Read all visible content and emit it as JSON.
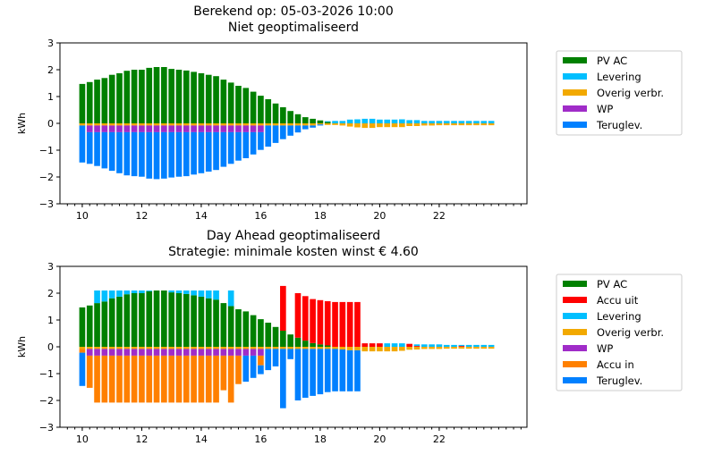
{
  "chart_data": [
    {
      "type": "bar",
      "stacked": true,
      "title": [
        "Berekend op: 05-03-2026 10:00",
        "Niet geoptimaliseerd"
      ],
      "xlabel": "",
      "ylabel": "kWh",
      "xlim": [
        9.25,
        24.95
      ],
      "ylim": [
        -3,
        3
      ],
      "xticks": [
        10,
        12,
        14,
        16,
        18,
        20,
        22
      ],
      "yticks": [
        -3,
        -2,
        -1,
        0,
        1,
        2,
        3
      ],
      "grid": false,
      "legend": "outside-right",
      "x": [
        10,
        10.25,
        10.5,
        10.75,
        11,
        11.25,
        11.5,
        11.75,
        12,
        12.25,
        12.5,
        12.75,
        13,
        13.25,
        13.5,
        13.75,
        14,
        14.25,
        14.5,
        14.75,
        15,
        15.25,
        15.5,
        15.75,
        16,
        16.25,
        16.5,
        16.75,
        17,
        17.25,
        17.5,
        17.75,
        18,
        18.25,
        18.5,
        18.75,
        19,
        19.25,
        19.5,
        19.75,
        20,
        20.25,
        20.5,
        20.75,
        21,
        21.25,
        21.5,
        21.75,
        22,
        22.25,
        22.5,
        22.75,
        23,
        23.25,
        23.5,
        23.75
      ],
      "series": [
        {
          "name": "PV AC",
          "color": "#008000",
          "values": [
            1.47,
            1.54,
            1.63,
            1.69,
            1.81,
            1.87,
            1.96,
            2.0,
            2.0,
            2.07,
            2.1,
            2.1,
            2.03,
            2.0,
            1.97,
            1.92,
            1.87,
            1.81,
            1.76,
            1.63,
            1.52,
            1.4,
            1.32,
            1.18,
            1.03,
            0.9,
            0.74,
            0.6,
            0.46,
            0.34,
            0.23,
            0.17,
            0.11,
            0.05,
            0,
            0,
            0,
            0,
            0,
            0,
            0,
            0,
            0,
            0,
            0,
            0,
            0,
            0,
            0,
            0,
            0,
            0,
            0,
            0,
            0,
            0
          ]
        },
        {
          "name": "Levering",
          "color": "#00bfff",
          "values": [
            0,
            0,
            0,
            0,
            0,
            0,
            0,
            0,
            0,
            0,
            0,
            0,
            0,
            0,
            0,
            0,
            0,
            0,
            0,
            0,
            0,
            0,
            0,
            0,
            0,
            0,
            0,
            0,
            0,
            0,
            0,
            0,
            0,
            0.03,
            0.09,
            0.09,
            0.14,
            0.15,
            0.17,
            0.17,
            0.14,
            0.14,
            0.14,
            0.15,
            0.12,
            0.12,
            0.09,
            0.09,
            0.09,
            0.09,
            0.09,
            0.09,
            0.09,
            0.09,
            0.09,
            0.09
          ]
        },
        {
          "name": "Overig verbr.",
          "color": "#f2a900",
          "values": [
            -0.08,
            -0.08,
            -0.08,
            -0.08,
            -0.08,
            -0.08,
            -0.08,
            -0.08,
            -0.08,
            -0.08,
            -0.08,
            -0.08,
            -0.08,
            -0.08,
            -0.08,
            -0.08,
            -0.08,
            -0.08,
            -0.08,
            -0.08,
            -0.08,
            -0.08,
            -0.08,
            -0.08,
            -0.08,
            -0.08,
            -0.08,
            -0.08,
            -0.08,
            -0.08,
            -0.08,
            -0.08,
            -0.04,
            -0.06,
            -0.06,
            -0.08,
            -0.12,
            -0.15,
            -0.17,
            -0.17,
            -0.14,
            -0.14,
            -0.14,
            -0.14,
            -0.1,
            -0.1,
            -0.08,
            -0.08,
            -0.07,
            -0.07,
            -0.07,
            -0.07,
            -0.07,
            -0.07,
            -0.07,
            -0.07
          ]
        },
        {
          "name": "WP",
          "color": "#a02cc8",
          "values": [
            0,
            -0.25,
            -0.25,
            -0.25,
            -0.25,
            -0.25,
            -0.25,
            -0.25,
            -0.25,
            -0.25,
            -0.25,
            -0.25,
            -0.25,
            -0.25,
            -0.25,
            -0.25,
            -0.25,
            -0.25,
            -0.25,
            -0.25,
            -0.25,
            -0.25,
            -0.25,
            -0.25,
            -0.25,
            0,
            0,
            0,
            0,
            0,
            0,
            0,
            0,
            0,
            0,
            0,
            0,
            0,
            0,
            0,
            0,
            0,
            0,
            0,
            0,
            0,
            0,
            0,
            0,
            0,
            0,
            0,
            0,
            0,
            0,
            0
          ]
        },
        {
          "name": "Teruglev.",
          "color": "#0080ff",
          "values": [
            -1.38,
            -1.18,
            -1.26,
            -1.35,
            -1.44,
            -1.53,
            -1.61,
            -1.64,
            -1.66,
            -1.73,
            -1.75,
            -1.73,
            -1.69,
            -1.66,
            -1.64,
            -1.58,
            -1.53,
            -1.47,
            -1.41,
            -1.29,
            -1.18,
            -1.06,
            -0.97,
            -0.83,
            -0.66,
            -0.79,
            -0.65,
            -0.51,
            -0.38,
            -0.26,
            -0.14,
            -0.08,
            -0.04,
            0,
            0,
            0,
            0,
            0,
            0,
            0,
            0,
            0,
            0,
            0,
            0,
            0,
            0,
            0,
            0,
            0,
            0,
            0,
            0,
            0,
            0,
            0
          ]
        }
      ]
    },
    {
      "type": "bar",
      "stacked": true,
      "title": [
        "Day Ahead geoptimaliseerd",
        "Strategie: minimale kosten winst € 4.60"
      ],
      "xlabel": "",
      "ylabel": "kWh",
      "xlim": [
        9.25,
        24.95
      ],
      "ylim": [
        -3,
        3
      ],
      "xticks": [
        10,
        12,
        14,
        16,
        18,
        20,
        22
      ],
      "yticks": [
        -3,
        -2,
        -1,
        0,
        1,
        2,
        3
      ],
      "grid": false,
      "legend": "outside-right",
      "x": [
        10,
        10.25,
        10.5,
        10.75,
        11,
        11.25,
        11.5,
        11.75,
        12,
        12.25,
        12.5,
        12.75,
        13,
        13.25,
        13.5,
        13.75,
        14,
        14.25,
        14.5,
        14.75,
        15,
        15.25,
        15.5,
        15.75,
        16,
        16.25,
        16.5,
        16.75,
        17,
        17.25,
        17.5,
        17.75,
        18,
        18.25,
        18.5,
        18.75,
        19,
        19.25,
        19.5,
        19.75,
        20,
        20.25,
        20.5,
        20.75,
        21,
        21.25,
        21.5,
        21.75,
        22,
        22.25,
        22.5,
        22.75,
        23,
        23.25,
        23.5,
        23.75
      ],
      "series": [
        {
          "name": "PV AC",
          "color": "#008000",
          "values": [
            1.47,
            1.54,
            1.63,
            1.69,
            1.81,
            1.87,
            1.96,
            2.0,
            2.0,
            2.07,
            2.1,
            2.1,
            2.03,
            2.0,
            1.97,
            1.92,
            1.87,
            1.81,
            1.76,
            1.63,
            1.52,
            1.4,
            1.32,
            1.18,
            1.03,
            0.9,
            0.74,
            0.6,
            0.46,
            0.34,
            0.23,
            0.14,
            0.09,
            0.05,
            0,
            0,
            0,
            0,
            0,
            0,
            0,
            0,
            0,
            0,
            0,
            0,
            0,
            0,
            0,
            0,
            0,
            0,
            0,
            0,
            0,
            0
          ]
        },
        {
          "name": "Accu uit",
          "color": "#ff0000",
          "values": [
            0,
            0,
            0,
            0,
            0,
            0,
            0,
            0,
            0,
            0,
            0,
            0,
            0,
            0,
            0,
            0,
            0,
            0,
            0,
            0,
            0,
            0,
            0,
            0,
            0,
            0,
            0,
            1.67,
            0,
            1.66,
            1.66,
            1.64,
            1.65,
            1.65,
            1.67,
            1.67,
            1.67,
            1.67,
            0.13,
            0.13,
            0.13,
            0,
            0,
            0,
            0.11,
            0.03,
            0,
            0,
            0,
            0,
            0,
            0.03,
            0,
            0,
            0,
            0
          ]
        },
        {
          "name": "Levering",
          "color": "#00bfff",
          "values": [
            0,
            0,
            0.47,
            0.41,
            0.29,
            0.23,
            0.14,
            0.1,
            0.1,
            0.03,
            0,
            0,
            0.07,
            0.1,
            0.13,
            0.18,
            0.23,
            0.29,
            0.34,
            0,
            0.58,
            0,
            0,
            0,
            0,
            0,
            0,
            0,
            0,
            0,
            0,
            0,
            0,
            0,
            0,
            0,
            0,
            0,
            0,
            0,
            0,
            0.13,
            0.13,
            0.13,
            0,
            0.06,
            0.09,
            0.09,
            0.09,
            0.07,
            0.07,
            0.04,
            0.07,
            0.07,
            0.07,
            0.07
          ]
        },
        {
          "name": "Overig verbr.",
          "color": "#f2a900",
          "values": [
            -0.08,
            -0.08,
            -0.08,
            -0.08,
            -0.08,
            -0.08,
            -0.08,
            -0.08,
            -0.08,
            -0.08,
            -0.08,
            -0.08,
            -0.08,
            -0.08,
            -0.08,
            -0.08,
            -0.08,
            -0.08,
            -0.08,
            -0.08,
            -0.08,
            -0.08,
            -0.08,
            -0.08,
            -0.08,
            -0.08,
            -0.08,
            -0.08,
            -0.08,
            -0.08,
            -0.08,
            -0.08,
            -0.08,
            -0.08,
            -0.08,
            -0.1,
            -0.13,
            -0.13,
            -0.17,
            -0.17,
            -0.17,
            -0.17,
            -0.17,
            -0.15,
            -0.11,
            -0.1,
            -0.08,
            -0.08,
            -0.08,
            -0.07,
            -0.07,
            -0.07,
            -0.07,
            -0.07,
            -0.07,
            -0.07
          ]
        },
        {
          "name": "WP",
          "color": "#a02cc8",
          "values": [
            0,
            -0.25,
            -0.25,
            -0.25,
            -0.25,
            -0.25,
            -0.25,
            -0.25,
            -0.25,
            -0.25,
            -0.25,
            -0.25,
            -0.25,
            -0.25,
            -0.25,
            -0.25,
            -0.25,
            -0.25,
            -0.25,
            -0.25,
            -0.25,
            -0.25,
            -0.25,
            -0.25,
            -0.25,
            0,
            0,
            0,
            0,
            0,
            0,
            0,
            0,
            0,
            0,
            0,
            0,
            0,
            0,
            0,
            0,
            0,
            0,
            0,
            0,
            0,
            0,
            0,
            0,
            0,
            0,
            0,
            0,
            0,
            0,
            0
          ]
        },
        {
          "name": "Accu in",
          "color": "#ff8000",
          "values": [
            -0.14,
            -1.2,
            -1.75,
            -1.75,
            -1.75,
            -1.75,
            -1.75,
            -1.75,
            -1.75,
            -1.75,
            -1.75,
            -1.75,
            -1.75,
            -1.75,
            -1.75,
            -1.75,
            -1.75,
            -1.75,
            -1.75,
            -1.29,
            -1.75,
            -1.06,
            0,
            0,
            -0.36,
            0,
            0,
            0,
            0,
            0,
            0,
            0,
            0,
            0,
            0,
            0,
            0,
            0,
            0,
            0,
            0,
            0,
            0,
            0,
            0,
            0,
            0,
            0,
            0,
            0,
            0,
            0,
            0,
            0,
            0,
            0
          ]
        },
        {
          "name": "Teruglev.",
          "color": "#0080ff",
          "values": [
            -1.24,
            0,
            0,
            0,
            0,
            0,
            0,
            0,
            0,
            0,
            0,
            0,
            0,
            0,
            0,
            0,
            0,
            0,
            0,
            0,
            0,
            0,
            -0.97,
            -0.83,
            -0.33,
            -0.79,
            -0.65,
            -2.21,
            -0.38,
            -1.92,
            -1.82,
            -1.75,
            -1.69,
            -1.61,
            -1.58,
            -1.56,
            -1.53,
            -1.53,
            0,
            0,
            0,
            0,
            0,
            0,
            0,
            0,
            0,
            0,
            0,
            0,
            0,
            0,
            0,
            0,
            0,
            0
          ]
        }
      ]
    }
  ]
}
